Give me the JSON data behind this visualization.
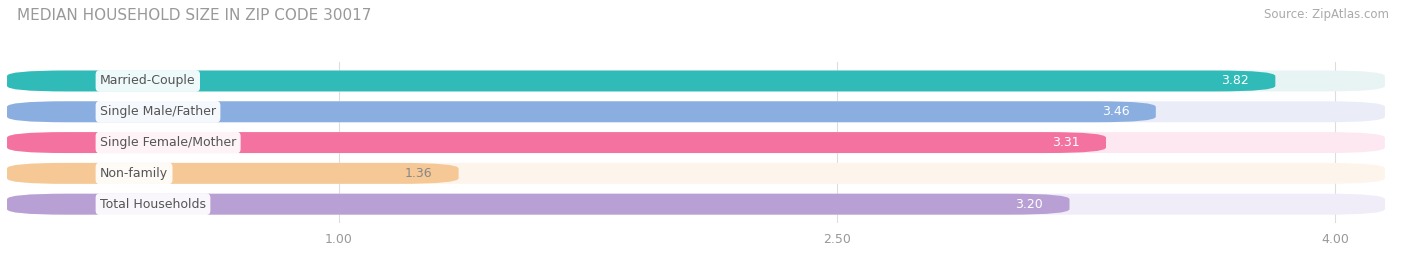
{
  "title": "MEDIAN HOUSEHOLD SIZE IN ZIP CODE 30017",
  "source": "Source: ZipAtlas.com",
  "categories": [
    "Married-Couple",
    "Single Male/Father",
    "Single Female/Mother",
    "Non-family",
    "Total Households"
  ],
  "values": [
    3.82,
    3.46,
    3.31,
    1.36,
    3.2
  ],
  "bar_colors": [
    "#31bbb8",
    "#8aaee0",
    "#f472a0",
    "#f5c896",
    "#b89fd4"
  ],
  "bar_bg_colors": [
    "#e8f4f4",
    "#eaecf8",
    "#fde8f2",
    "#fdf5ec",
    "#f0ecf8"
  ],
  "value_colors": [
    "#ffffff",
    "#ffffff",
    "#ffffff",
    "#888888",
    "#ffffff"
  ],
  "xlim_min": 0.0,
  "xlim_max": 4.15,
  "xticks": [
    1.0,
    2.5,
    4.0
  ],
  "title_fontsize": 11,
  "source_fontsize": 8.5,
  "bar_label_fontsize": 9,
  "category_fontsize": 9,
  "tick_fontsize": 9,
  "bg_color": "#ffffff",
  "bar_height": 0.68,
  "bar_gap": 0.32
}
